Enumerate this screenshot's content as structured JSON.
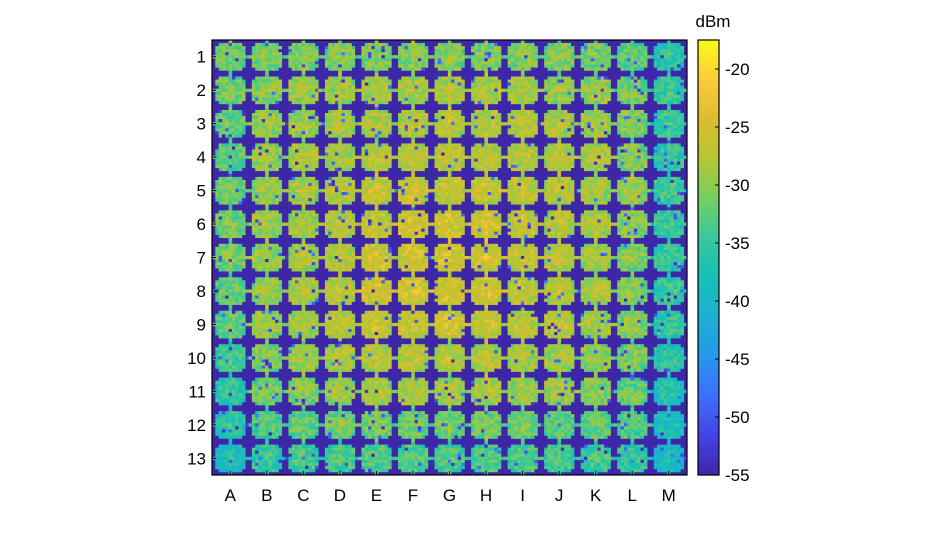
{
  "chart_data": {
    "type": "heatmap",
    "description_source": "chip array scan",
    "rows": [
      "1",
      "2",
      "3",
      "4",
      "5",
      "6",
      "7",
      "8",
      "9",
      "10",
      "11",
      "12",
      "13"
    ],
    "columns": [
      "A",
      "B",
      "C",
      "D",
      "E",
      "F",
      "G",
      "H",
      "I",
      "J",
      "K",
      "L",
      "M"
    ],
    "colorbar": {
      "label": "dBm",
      "ticks": [
        -20,
        -25,
        -30,
        -35,
        -40,
        -45,
        -50,
        -55
      ],
      "tick_labels": [
        "-20",
        "-25",
        "-30",
        "-35",
        "-40",
        "-45",
        "-50",
        "-55"
      ],
      "range": [
        -55,
        -17.5
      ]
    },
    "colormap": [
      "#3e26a8",
      "#4543e6",
      "#3c6ffe",
      "#2797eb",
      "#1cb0d4",
      "#16bfb8",
      "#38c99a",
      "#77ce62",
      "#b4c731",
      "#dcbd2d",
      "#fbcc3a",
      "#f9fb15"
    ],
    "background_dbm": -55,
    "values_dbm": [
      [
        -30,
        -30,
        -29,
        -29,
        -29,
        -29,
        -29,
        -29,
        -29,
        -29,
        -30,
        -31,
        -35
      ],
      [
        -30,
        -29,
        -28,
        -28,
        -27,
        -27,
        -27,
        -27,
        -27,
        -28,
        -28,
        -30,
        -34
      ],
      [
        -31,
        -28,
        -28,
        -27,
        -27,
        -26,
        -26,
        -26,
        -26,
        -27,
        -27,
        -29,
        -34
      ],
      [
        -31,
        -28,
        -27,
        -27,
        -26,
        -26,
        -26,
        -26,
        -26,
        -26,
        -27,
        -29,
        -34
      ],
      [
        -30,
        -28,
        -27,
        -26,
        -25,
        -25,
        -25,
        -25,
        -25,
        -26,
        -27,
        -28,
        -33
      ],
      [
        -30,
        -28,
        -27,
        -26,
        -25,
        -24,
        -24,
        -24,
        -25,
        -26,
        -27,
        -29,
        -34
      ],
      [
        -30,
        -28,
        -27,
        -26,
        -24,
        -24,
        -24,
        -24,
        -25,
        -26,
        -27,
        -29,
        -34
      ],
      [
        -31,
        -28,
        -27,
        -26,
        -24,
        -24,
        -24,
        -24,
        -25,
        -26,
        -27,
        -29,
        -34
      ],
      [
        -31,
        -28,
        -27,
        -26,
        -25,
        -25,
        -24,
        -25,
        -26,
        -26,
        -27,
        -29,
        -34
      ],
      [
        -33,
        -29,
        -28,
        -27,
        -26,
        -26,
        -26,
        -26,
        -27,
        -27,
        -28,
        -30,
        -35
      ],
      [
        -34,
        -30,
        -29,
        -28,
        -27,
        -27,
        -27,
        -27,
        -28,
        -28,
        -29,
        -31,
        -36
      ],
      [
        -35,
        -32,
        -31,
        -30,
        -30,
        -30,
        -30,
        -30,
        -30,
        -31,
        -31,
        -32,
        -37
      ],
      [
        -37,
        -34,
        -33,
        -33,
        -32,
        -32,
        -32,
        -32,
        -32,
        -33,
        -33,
        -34,
        -38
      ]
    ]
  }
}
